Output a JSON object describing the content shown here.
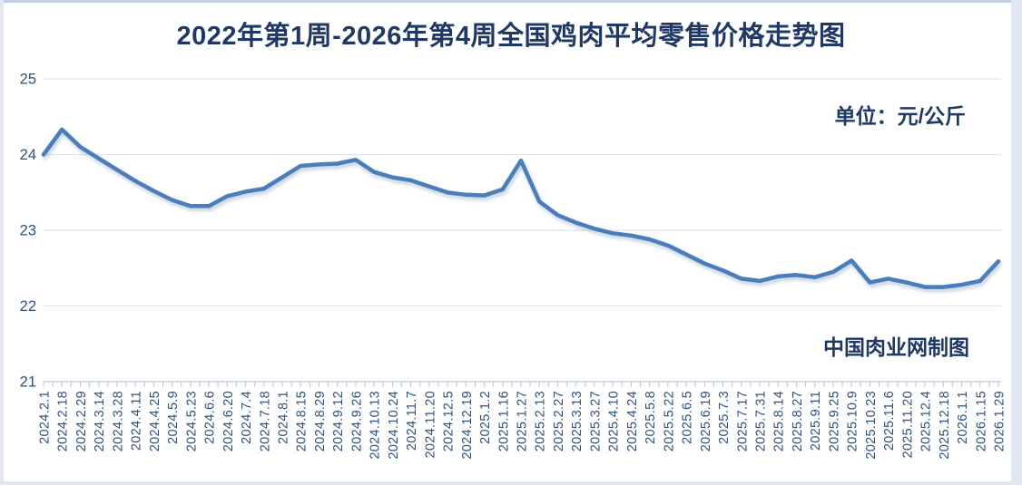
{
  "chart": {
    "title": "2022年第1周-2026年第4周全国鸡肉平均零售价格走势图"
  },
  "chart_data": {
    "type": "line",
    "title": "2022年第1周-2026年第4周全国鸡肉平均零售价格走势图",
    "annotations": {
      "unit": "单位：元/公斤",
      "credit": "中国肉业网制图"
    },
    "x": [
      "2024.2.1",
      "2024.2.18",
      "2024.2.29",
      "2024.3.14",
      "2024.3.28",
      "2024.4.11",
      "2024.4.25",
      "2024.5.9",
      "2024.5.23",
      "2024.6.6",
      "2024.6.20",
      "2024.7.4",
      "2024.7.18",
      "2024.8.1",
      "2024.8.15",
      "2024.8.29",
      "2024.9.12",
      "2024.9.26",
      "2024.10.13",
      "2024.10.24",
      "2024.11.7",
      "2024.11.20",
      "2024.12.5",
      "2024.12.19",
      "2025.1.2",
      "2025.1.16",
      "2025.1.27",
      "2025.2.13",
      "2025.2.27",
      "2025.3.13",
      "2025.3.27",
      "2025.4.10",
      "2025.4.24",
      "2025.5.8",
      "2025.5.22",
      "2025.6.5",
      "2025.6.19",
      "2025.7.3",
      "2025.7.17",
      "2025.7.31",
      "2025.8.14",
      "2025.8.27",
      "2025.9.11",
      "2025.9.25",
      "2025.10.9",
      "2025.10.23",
      "2025.11.6",
      "2025.11.20",
      "2025.12.4",
      "2025.12.18",
      "2026.1.1",
      "2026.1.15",
      "2026.1.29"
    ],
    "values": [
      24.0,
      24.33,
      24.1,
      23.95,
      23.8,
      23.65,
      23.52,
      23.4,
      23.32,
      23.32,
      23.45,
      23.51,
      23.55,
      23.7,
      23.85,
      23.87,
      23.88,
      23.93,
      23.77,
      23.7,
      23.66,
      23.58,
      23.5,
      23.47,
      23.46,
      23.54,
      23.92,
      23.38,
      23.2,
      23.1,
      23.02,
      22.96,
      22.93,
      22.88,
      22.8,
      22.68,
      22.56,
      22.47,
      22.36,
      22.33,
      22.39,
      22.41,
      22.38,
      22.45,
      22.6,
      22.31,
      22.36,
      22.31,
      22.25,
      22.25,
      22.28,
      22.33,
      22.59
    ],
    "xlabel": "",
    "ylabel": "",
    "ylim": [
      21,
      25
    ],
    "yticks": [
      21,
      22,
      23,
      24,
      25
    ],
    "grid": "horizontal",
    "legend": "none",
    "line_color": "#4a7ebb",
    "axis_text_color": "#31517b",
    "title_color": "#1f3864",
    "gridline_color": "#dde4ee",
    "axisline_color": "#b9c6da"
  }
}
